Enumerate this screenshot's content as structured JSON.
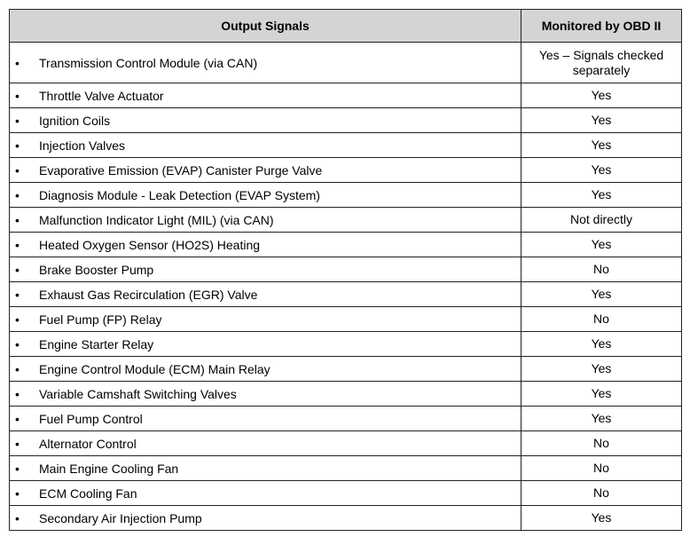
{
  "table": {
    "headers": [
      "Output Signals",
      "Monitored by OBD II"
    ],
    "rows": [
      {
        "signal": "Transmission Control Module (via CAN)",
        "monitored": "Yes – Signals checked separately"
      },
      {
        "signal": "Throttle Valve Actuator",
        "monitored": "Yes"
      },
      {
        "signal": "Ignition Coils",
        "monitored": "Yes"
      },
      {
        "signal": "Injection Valves",
        "monitored": "Yes"
      },
      {
        "signal": "Evaporative Emission (EVAP) Canister Purge Valve",
        "monitored": "Yes"
      },
      {
        "signal": "Diagnosis Module - Leak Detection (EVAP System)",
        "monitored": "Yes"
      },
      {
        "signal": "Malfunction Indicator Light (MIL) (via CAN)",
        "monitored": "Not directly"
      },
      {
        "signal": "Heated Oxygen Sensor (HO2S) Heating",
        "monitored": "Yes"
      },
      {
        "signal": "Brake Booster Pump",
        "monitored": "No"
      },
      {
        "signal": "Exhaust Gas Recirculation (EGR) Valve",
        "monitored": "Yes"
      },
      {
        "signal": "Fuel Pump (FP) Relay",
        "monitored": "No"
      },
      {
        "signal": "Engine Starter Relay",
        "monitored": "Yes"
      },
      {
        "signal": "Engine Control Module (ECM) Main Relay",
        "monitored": "Yes"
      },
      {
        "signal": "Variable Camshaft Switching Valves",
        "monitored": "Yes"
      },
      {
        "signal": "Fuel Pump Control",
        "monitored": "Yes"
      },
      {
        "signal": "Alternator Control",
        "monitored": "No"
      },
      {
        "signal": "Main Engine Cooling Fan",
        "monitored": "No"
      },
      {
        "signal": "ECM Cooling Fan",
        "monitored": "No"
      },
      {
        "signal": "Secondary Air Injection Pump",
        "monitored": "Yes"
      }
    ],
    "bullet": "•"
  }
}
